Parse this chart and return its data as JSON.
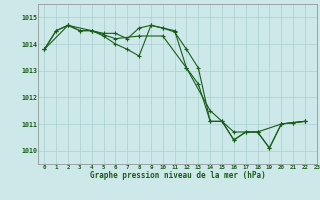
{
  "title": "Graphe pression niveau de la mer (hPa)",
  "background_color": "#cce8e8",
  "grid_color": "#aacfcf",
  "line_color": "#1a5c1a",
  "xlim": [
    -0.5,
    23
  ],
  "ylim": [
    1009.5,
    1015.5
  ],
  "yticks": [
    1010,
    1011,
    1012,
    1013,
    1014,
    1015
  ],
  "xticks": [
    0,
    1,
    2,
    3,
    4,
    5,
    6,
    7,
    8,
    9,
    10,
    11,
    12,
    13,
    14,
    15,
    16,
    17,
    18,
    19,
    20,
    21,
    22,
    23
  ],
  "series": [
    {
      "x": [
        0,
        1,
        2,
        3,
        4,
        5,
        6,
        7,
        8,
        9,
        10,
        11,
        12,
        13,
        14,
        15,
        16,
        17,
        18,
        19,
        20,
        21,
        22
      ],
      "y": [
        1013.8,
        1014.5,
        1014.7,
        1014.5,
        1014.5,
        1014.4,
        1014.4,
        1014.2,
        1014.6,
        1014.7,
        1014.6,
        1014.5,
        1013.1,
        1012.5,
        1011.1,
        1011.1,
        1010.4,
        1010.7,
        1010.7,
        1010.1,
        1011.0,
        1011.05,
        1011.1
      ]
    },
    {
      "x": [
        0,
        1,
        2,
        3,
        4,
        5,
        6,
        7,
        8,
        9,
        10,
        11,
        12,
        13,
        14,
        15,
        16,
        17,
        18,
        19,
        20,
        21,
        22
      ],
      "y": [
        1013.8,
        1014.5,
        1014.7,
        1014.5,
        1014.5,
        1014.3,
        1014.0,
        1013.8,
        1013.55,
        1014.7,
        1014.6,
        1014.45,
        1013.8,
        1013.1,
        1011.1,
        1011.1,
        1010.4,
        1010.7,
        1010.7,
        1010.1,
        1011.0,
        1011.05,
        1011.1
      ]
    },
    {
      "x": [
        0,
        2,
        4,
        6,
        8,
        10,
        12,
        14,
        16,
        18,
        20,
        22
      ],
      "y": [
        1013.8,
        1014.7,
        1014.5,
        1014.2,
        1014.3,
        1014.3,
        1013.1,
        1011.5,
        1010.7,
        1010.7,
        1011.0,
        1011.1
      ]
    }
  ]
}
